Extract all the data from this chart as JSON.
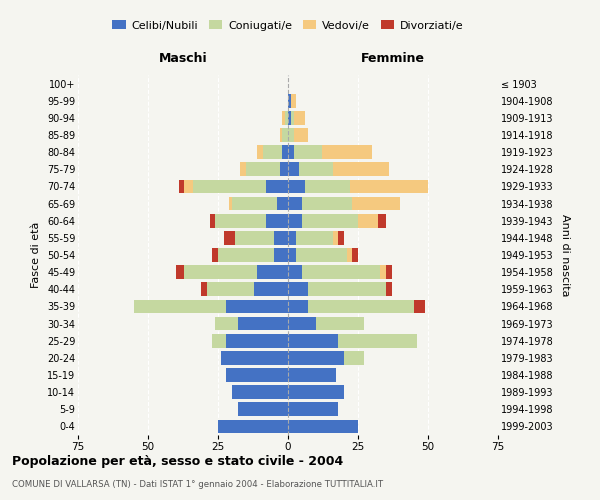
{
  "age_groups": [
    "0-4",
    "5-9",
    "10-14",
    "15-19",
    "20-24",
    "25-29",
    "30-34",
    "35-39",
    "40-44",
    "45-49",
    "50-54",
    "55-59",
    "60-64",
    "65-69",
    "70-74",
    "75-79",
    "80-84",
    "85-89",
    "90-94",
    "95-99",
    "100+"
  ],
  "birth_years": [
    "1999-2003",
    "1994-1998",
    "1989-1993",
    "1984-1988",
    "1979-1983",
    "1974-1978",
    "1969-1973",
    "1964-1968",
    "1959-1963",
    "1954-1958",
    "1949-1953",
    "1944-1948",
    "1939-1943",
    "1934-1938",
    "1929-1933",
    "1924-1928",
    "1919-1923",
    "1914-1918",
    "1909-1913",
    "1904-1908",
    "≤ 1903"
  ],
  "colors": {
    "celibe": "#4472c4",
    "coniugato": "#c5d8a0",
    "vedovo": "#f5c97f",
    "divorziato": "#c0392b"
  },
  "maschi": {
    "celibe": [
      25,
      18,
      20,
      22,
      24,
      22,
      18,
      22,
      12,
      11,
      5,
      5,
      8,
      4,
      8,
      3,
      2,
      0,
      0,
      0,
      0
    ],
    "coniugato": [
      0,
      0,
      0,
      0,
      0,
      5,
      8,
      33,
      17,
      26,
      20,
      14,
      18,
      16,
      26,
      12,
      7,
      2,
      1,
      0,
      0
    ],
    "vedovo": [
      0,
      0,
      0,
      0,
      0,
      0,
      0,
      0,
      0,
      0,
      0,
      0,
      0,
      1,
      3,
      2,
      2,
      1,
      1,
      0,
      0
    ],
    "divorziato": [
      0,
      0,
      0,
      0,
      0,
      0,
      0,
      0,
      2,
      3,
      2,
      4,
      2,
      0,
      2,
      0,
      0,
      0,
      0,
      0,
      0
    ]
  },
  "femmine": {
    "nubile": [
      25,
      18,
      20,
      17,
      20,
      18,
      10,
      7,
      7,
      5,
      3,
      3,
      5,
      5,
      6,
      4,
      2,
      0,
      1,
      1,
      0
    ],
    "coniugata": [
      0,
      0,
      0,
      0,
      7,
      28,
      17,
      38,
      28,
      28,
      18,
      13,
      20,
      18,
      16,
      12,
      10,
      2,
      1,
      0,
      0
    ],
    "vedova": [
      0,
      0,
      0,
      0,
      0,
      0,
      0,
      0,
      0,
      2,
      2,
      2,
      7,
      17,
      28,
      20,
      18,
      5,
      4,
      2,
      0
    ],
    "divorziata": [
      0,
      0,
      0,
      0,
      0,
      0,
      0,
      4,
      2,
      2,
      2,
      2,
      3,
      0,
      0,
      0,
      0,
      0,
      0,
      0,
      0
    ]
  },
  "xlim": 75,
  "title": "Popolazione per età, sesso e stato civile - 2004",
  "subtitle": "COMUNE DI VALLARSA (TN) - Dati ISTAT 1° gennaio 2004 - Elaborazione TUTTITALIA.IT",
  "ylabel_left": "Fasce di età",
  "ylabel_right": "Anni di nascita",
  "xlabel_left": "Maschi",
  "xlabel_right": "Femmine",
  "bg_color": "#f5f5f0"
}
